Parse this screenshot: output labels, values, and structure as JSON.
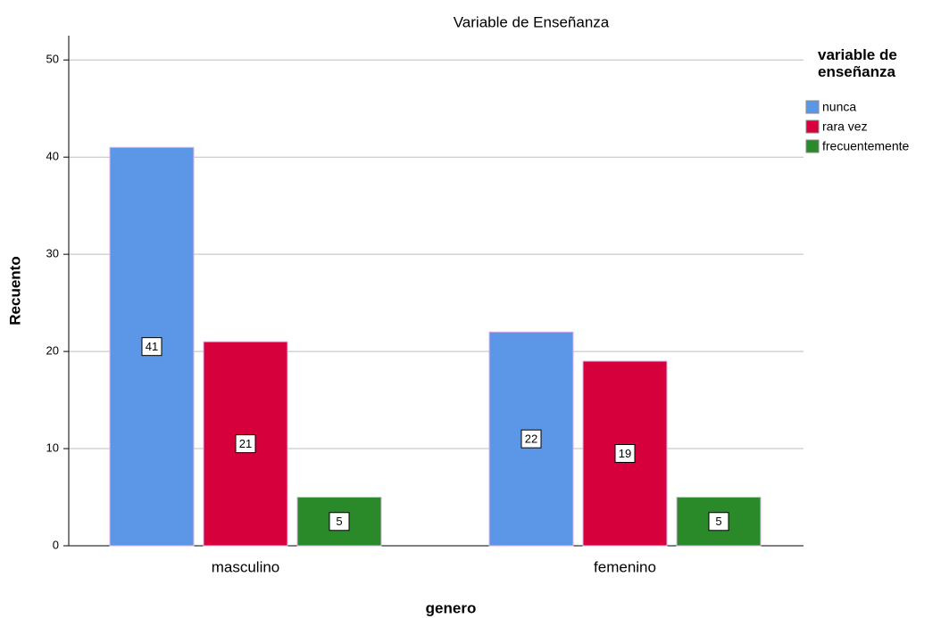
{
  "chart_data": {
    "type": "bar",
    "title": "Variable de Enseñanza",
    "x_label": "genero",
    "y_label": "Recuento",
    "categories": [
      "masculino",
      "femenino"
    ],
    "legend_title": "variable de enseñanza",
    "series": [
      {
        "name": "nunca",
        "color": "#5b97e6",
        "values": [
          41,
          22
        ]
      },
      {
        "name": "rara vez",
        "color": "#d5003c",
        "values": [
          21,
          19
        ]
      },
      {
        "name": "frecuentemente",
        "color": "#2a8a2a",
        "values": [
          5,
          5
        ]
      }
    ],
    "ylim": [
      0,
      52.5
    ],
    "yticks": [
      0,
      10,
      20,
      30,
      40,
      50
    ],
    "grid": true,
    "legend": "right"
  }
}
